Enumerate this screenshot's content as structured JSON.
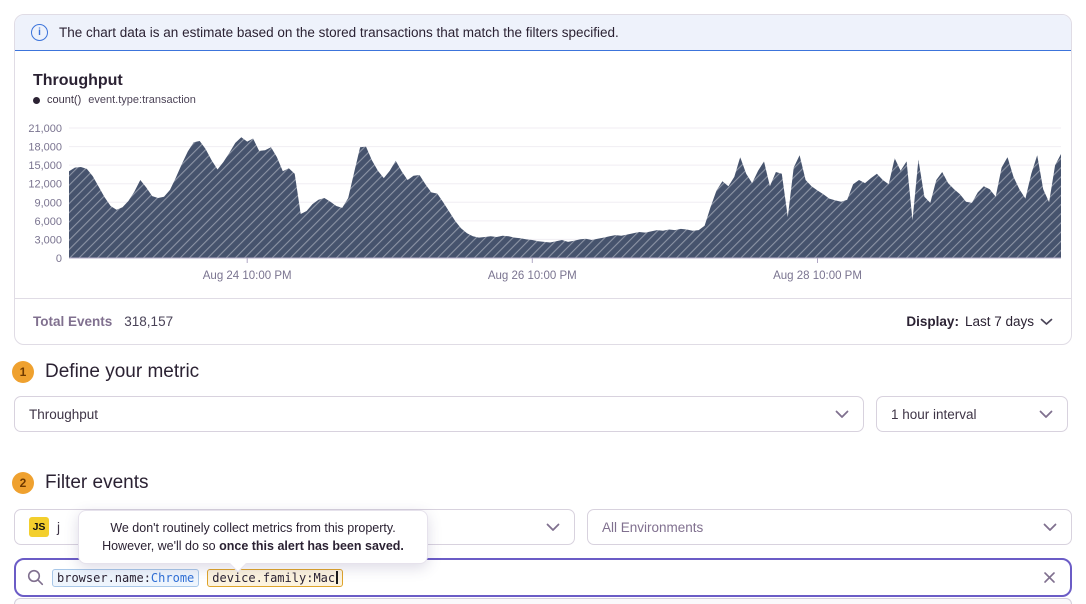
{
  "banner": {
    "text": "The chart data is an estimate based on the stored transactions that match the filters specified."
  },
  "chart": {
    "title": "Throughput",
    "legend_series": "count()",
    "legend_query": "event.type:transaction",
    "footer": {
      "total_label": "Total Events",
      "total_value": "318,157",
      "display_label": "Display:",
      "display_value": "Last 7 days"
    }
  },
  "chart_data": {
    "type": "area",
    "title": "Throughput",
    "series_name": "count() event.type:transaction",
    "interval": "1 hour",
    "range": "Last 7 days",
    "ylim": [
      0,
      21000
    ],
    "y_ticks": [
      0,
      3000,
      6000,
      9000,
      12000,
      15000,
      18000,
      21000
    ],
    "x_ticks": [
      {
        "label": "Aug 24 10:00 PM",
        "index": 30
      },
      {
        "label": "Aug 26 10:00 PM",
        "index": 78
      },
      {
        "label": "Aug 28 10:00 PM",
        "index": 126
      }
    ],
    "grid": true,
    "legend_position": "top-left",
    "fill_style": "diagonal-hatch",
    "values": [
      14000,
      14600,
      14700,
      14400,
      13200,
      11500,
      9800,
      8400,
      7800,
      8200,
      9200,
      10700,
      12600,
      11400,
      10000,
      9700,
      9900,
      11000,
      13000,
      15200,
      17200,
      18700,
      18900,
      17600,
      15800,
      14300,
      15500,
      17000,
      18600,
      19500,
      18800,
      19300,
      17300,
      17400,
      17900,
      16300,
      14000,
      14500,
      13600,
      7100,
      7600,
      8700,
      9400,
      9700,
      9100,
      8400,
      8100,
      9700,
      13800,
      17900,
      18000,
      15800,
      14100,
      12900,
      14100,
      15700,
      14000,
      12600,
      13300,
      13400,
      11900,
      10600,
      10400,
      9000,
      7500,
      6000,
      4800,
      4000,
      3500,
      3300,
      3400,
      3500,
      3400,
      3600,
      3500,
      3300,
      3200,
      3000,
      2900,
      2700,
      2600,
      2500,
      2700,
      2900,
      2600,
      2800,
      3000,
      3100,
      2900,
      3100,
      3300,
      3500,
      3700,
      3600,
      3800,
      4000,
      4200,
      4100,
      4300,
      4500,
      4400,
      4600,
      4500,
      4700,
      4600,
      4400,
      4500,
      5200,
      8200,
      10900,
      12400,
      11600,
      13100,
      16300,
      13600,
      12100,
      14100,
      15600,
      11600,
      13900,
      13600,
      6600,
      14600,
      16600,
      12600,
      11600,
      10900,
      10300,
      9600,
      9300,
      9100,
      9400,
      11900,
      12600,
      12100,
      12900,
      13600,
      12600,
      11900,
      16100,
      14100,
      15600,
      6100,
      15900,
      9900,
      8900,
      12600,
      13900,
      12100,
      11100,
      10300,
      9100,
      8900,
      10600,
      11600,
      11100,
      9900,
      14600,
      16300,
      13100,
      11100,
      9600,
      13600,
      16600,
      11100,
      9000,
      15000,
      16800
    ]
  },
  "sections": {
    "metric": {
      "step": "1",
      "title": "Define your metric",
      "metric_select_value": "Throughput",
      "interval_select_value": "1 hour interval"
    },
    "filter": {
      "step": "2",
      "title": "Filter events",
      "project_badge": "JS",
      "project_label_visible": "j",
      "environment_select_value": "All Environments"
    }
  },
  "tooltip": {
    "line1": "We don't routinely collect metrics from this property.",
    "line2_prefix": "However, we'll do so ",
    "line2_bold": "once this alert has been saved."
  },
  "search": {
    "tokens": [
      {
        "key": "browser.name:",
        "value": "Chrome"
      },
      {
        "key": "device.family:",
        "value": "Mac"
      }
    ]
  },
  "colors": {
    "banner_bg": "#eef2fb",
    "banner_border": "#3c74db",
    "area_fill": "#46536d",
    "axis_line": "#b1a8c5",
    "axis_text": "#7a7490",
    "step_badge": "#efa12f",
    "search_focus_border": "#6b5cc6",
    "token_blue_border": "#a8c7e8",
    "token_amber_border": "#dfa42a",
    "js_badge": "#f3cf2d"
  }
}
